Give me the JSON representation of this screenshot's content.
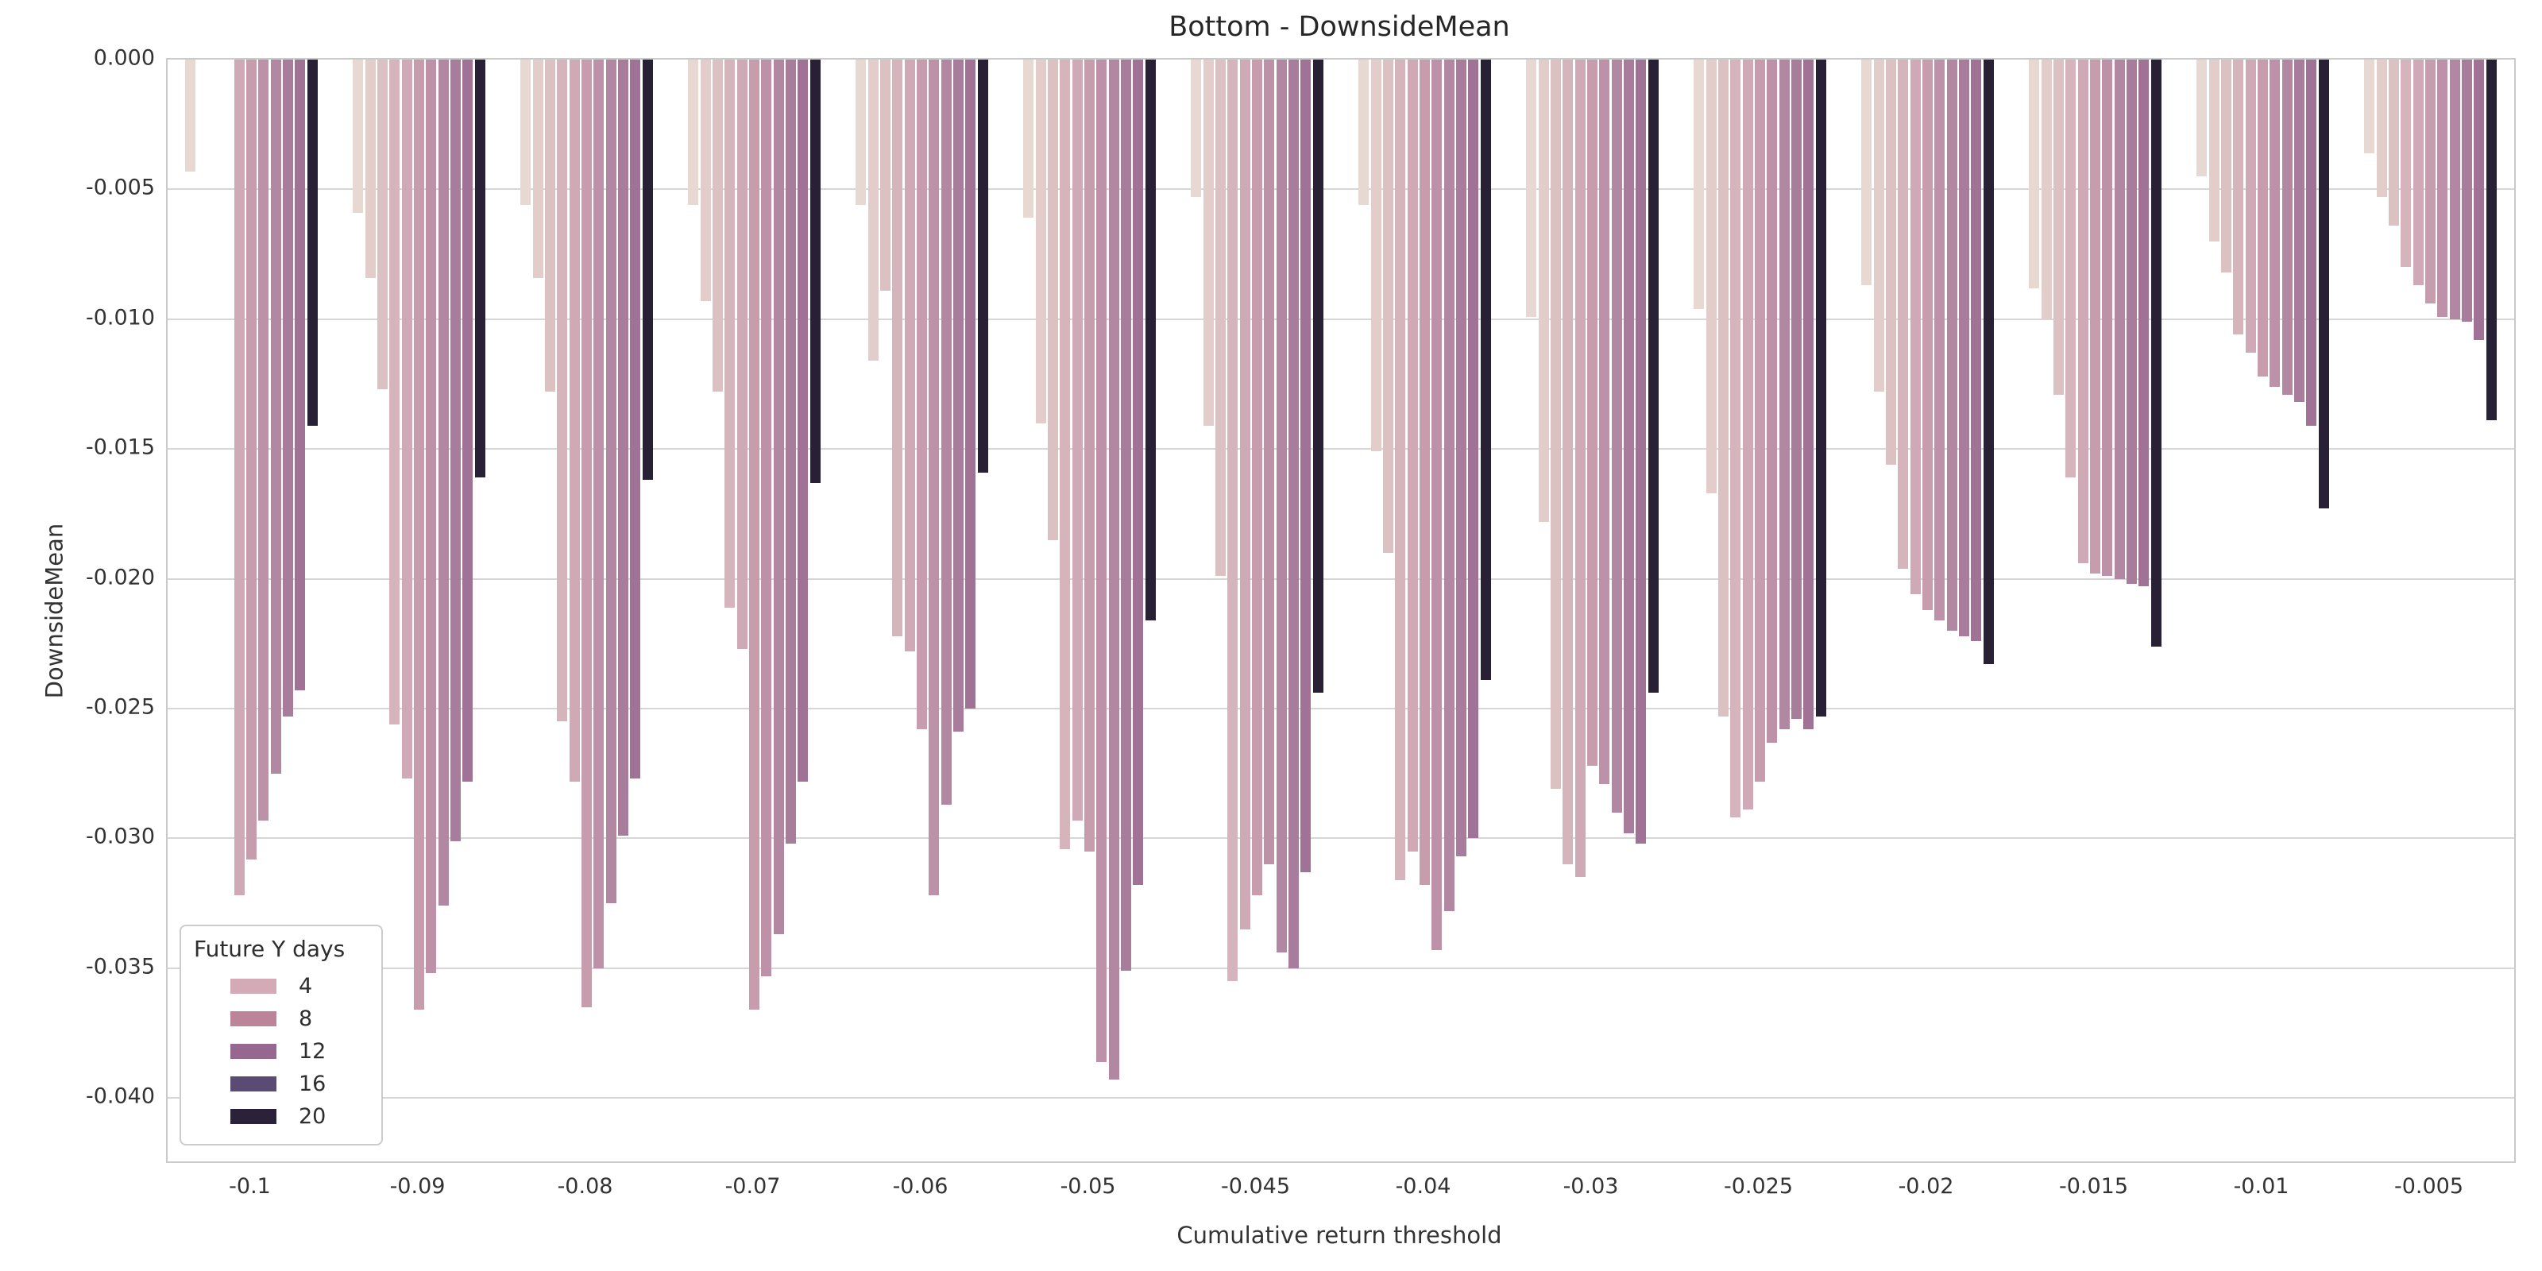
{
  "title": "Bottom - DownsideMean",
  "axes": {
    "x_label": "Cumulative return threshold",
    "y_label": "DownsideMean",
    "y_tick_labels": [
      "0.000",
      "-0.005",
      "-0.010",
      "-0.015",
      "-0.020",
      "-0.025",
      "-0.030",
      "-0.035",
      "-0.040"
    ],
    "y_tick_values": [
      0,
      -0.005,
      -0.01,
      -0.015,
      -0.02,
      -0.025,
      -0.03,
      -0.035,
      -0.04
    ],
    "x_tick_labels": [
      "-0.1",
      "-0.09",
      "-0.08",
      "-0.07",
      "-0.06",
      "-0.05",
      "-0.045",
      "-0.04",
      "-0.03",
      "-0.025",
      "-0.02",
      "-0.015",
      "-0.01",
      "-0.005"
    ]
  },
  "legend": {
    "title": "Future Y days",
    "entries": [
      {
        "label": "4",
        "color": "#d5aab7"
      },
      {
        "label": "8",
        "color": "#bc8399"
      },
      {
        "label": "12",
        "color": "#96688f"
      },
      {
        "label": "16",
        "color": "#5b4a73"
      },
      {
        "label": "20",
        "color": "#2b2139"
      }
    ]
  },
  "chart_data": {
    "type": "bar",
    "title": "Bottom - DownsideMean",
    "xlabel": "Cumulative return threshold",
    "ylabel": "DownsideMean",
    "ylim": [
      -0.04244,
      0
    ],
    "grid": "horizontal",
    "legend_position": "lower left",
    "categories": [
      "-0.1",
      "-0.09",
      "-0.08",
      "-0.07",
      "-0.06",
      "-0.05",
      "-0.045",
      "-0.04",
      "-0.03",
      "-0.025",
      "-0.02",
      "-0.015",
      "-0.01",
      "-0.005"
    ],
    "hue_legend_shown": [
      "4",
      "8",
      "12",
      "16",
      "20"
    ],
    "series": [
      {
        "hue_index": 1,
        "color": "#e8d8d2",
        "values": [
          -0.0043,
          -0.0059,
          -0.0056,
          -0.0056,
          -0.0056,
          -0.0061,
          -0.0053,
          -0.0056,
          -0.0099,
          -0.0096,
          -0.0087,
          -0.0088,
          -0.0045,
          -0.0036
        ]
      },
      {
        "hue_index": 2,
        "color": "#e2cdca",
        "values": [
          null,
          -0.0084,
          -0.0084,
          -0.0093,
          -0.0116,
          -0.014,
          -0.0141,
          -0.0151,
          -0.0178,
          -0.0167,
          -0.0128,
          -0.01,
          -0.007,
          -0.0053
        ]
      },
      {
        "hue_index": 3,
        "color": "#dcc1c3",
        "values": [
          null,
          -0.0127,
          -0.0128,
          -0.0128,
          -0.0089,
          -0.0185,
          -0.0199,
          -0.019,
          -0.0281,
          -0.0253,
          -0.0156,
          -0.0129,
          -0.0082,
          -0.0064
        ]
      },
      {
        "hue_index": 4,
        "color": "#d6b4bc",
        "values": [
          null,
          -0.0256,
          -0.0255,
          -0.0211,
          -0.0222,
          -0.0304,
          -0.0355,
          -0.0316,
          -0.031,
          -0.0292,
          -0.0196,
          -0.0161,
          -0.0106,
          -0.008
        ]
      },
      {
        "hue_index": 5,
        "color": "#cfa9b5",
        "values": [
          -0.0322,
          -0.0277,
          -0.0278,
          -0.0227,
          -0.0228,
          -0.0293,
          -0.0335,
          -0.0305,
          -0.0315,
          -0.0289,
          -0.0206,
          -0.0194,
          -0.0113,
          -0.0087
        ]
      },
      {
        "hue_index": 6,
        "color": "#c79dae",
        "values": [
          -0.0308,
          -0.0366,
          -0.0365,
          -0.0366,
          -0.0258,
          -0.0305,
          -0.0322,
          -0.0318,
          -0.0272,
          -0.0278,
          -0.0212,
          -0.0198,
          -0.0122,
          -0.0094
        ]
      },
      {
        "hue_index": 7,
        "color": "#bd91a8",
        "values": [
          -0.0293,
          -0.0352,
          -0.035,
          -0.0353,
          -0.0322,
          -0.0386,
          -0.031,
          -0.0343,
          -0.0279,
          -0.0263,
          -0.0216,
          -0.0199,
          -0.0126,
          -0.0099
        ]
      },
      {
        "hue_index": 8,
        "color": "#b287a2",
        "values": [
          -0.0275,
          -0.0326,
          -0.0325,
          -0.0337,
          -0.0287,
          -0.0393,
          -0.0344,
          -0.0328,
          -0.029,
          -0.0258,
          -0.022,
          -0.02,
          -0.0129,
          -0.01
        ]
      },
      {
        "hue_index": 9,
        "color": "#a87d9c",
        "values": [
          -0.0253,
          -0.0301,
          -0.0299,
          -0.0302,
          -0.0259,
          -0.0351,
          -0.035,
          -0.0307,
          -0.0298,
          -0.0254,
          -0.0222,
          -0.0202,
          -0.0132,
          -0.0101
        ]
      },
      {
        "hue_index": 10,
        "color": "#a07396",
        "values": [
          -0.0243,
          -0.0278,
          -0.0277,
          -0.0278,
          -0.025,
          -0.0318,
          -0.0313,
          -0.03,
          -0.0302,
          -0.0258,
          -0.0224,
          -0.0203,
          -0.0141,
          -0.0108
        ]
      },
      {
        "hue_index": 11,
        "color": "#282034",
        "values": [
          -0.0141,
          -0.0161,
          -0.0162,
          -0.0163,
          -0.0159,
          -0.0216,
          -0.0244,
          -0.0239,
          -0.0244,
          -0.0253,
          -0.0233,
          -0.0226,
          -0.0173,
          -0.0139
        ]
      }
    ]
  }
}
